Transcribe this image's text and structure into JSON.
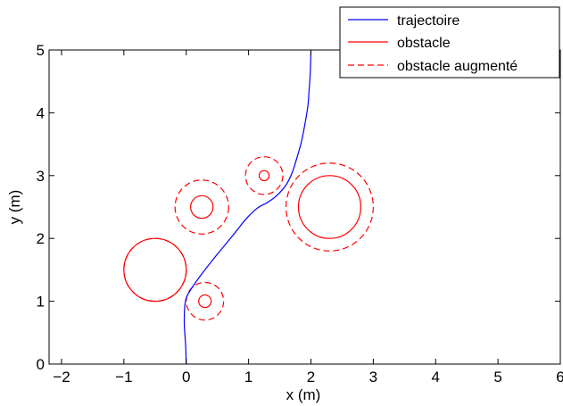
{
  "chart_data": {
    "type": "line",
    "xlabel": "x (m)",
    "ylabel": "y (m)",
    "xlim": [
      -2.2,
      6
    ],
    "ylim": [
      0,
      5
    ],
    "xticks": [
      "−2",
      "−1",
      "0",
      "1",
      "2",
      "3",
      "4",
      "5",
      "6"
    ],
    "yticks": [
      "0",
      "1",
      "2",
      "3",
      "4",
      "5"
    ],
    "grid": false,
    "legend_position": "top-right",
    "legend": [
      {
        "label": "trajectoire",
        "style": "solid",
        "color": "#0000ff"
      },
      {
        "label": "obstacle",
        "style": "solid",
        "color": "#ff0000"
      },
      {
        "label": "obstacle augmenté",
        "style": "dashed",
        "color": "#ff0000"
      }
    ],
    "series": [
      {
        "name": "trajectoire",
        "color": "#0000ff",
        "x": [
          0.0,
          -0.01,
          -0.03,
          -0.03,
          -0.02,
          0.0,
          0.05,
          0.15,
          0.3,
          0.5,
          0.75,
          0.95,
          1.1,
          1.2,
          1.3,
          1.45,
          1.6,
          1.7,
          1.78,
          1.85,
          1.9,
          1.95,
          1.97,
          1.99,
          2.0
        ],
        "y": [
          0.0,
          0.3,
          0.6,
          0.8,
          0.95,
          1.05,
          1.15,
          1.3,
          1.5,
          1.75,
          2.05,
          2.3,
          2.45,
          2.52,
          2.57,
          2.68,
          2.85,
          3.05,
          3.3,
          3.55,
          3.8,
          4.1,
          4.35,
          4.65,
          5.0
        ]
      }
    ],
    "obstacles": [
      {
        "cx": -0.5,
        "cy": 1.5,
        "r": 0.5,
        "r_augmented": 0.5
      },
      {
        "cx": 0.25,
        "cy": 2.5,
        "r": 0.18,
        "r_augmented": 0.43
      },
      {
        "cx": 0.3,
        "cy": 1.0,
        "r": 0.1,
        "r_augmented": 0.3
      },
      {
        "cx": 1.25,
        "cy": 3.0,
        "r": 0.08,
        "r_augmented": 0.3
      },
      {
        "cx": 2.3,
        "cy": 2.5,
        "r": 0.5,
        "r_augmented": 0.7
      }
    ],
    "colors": {
      "trajectory": "#0000ff",
      "obstacle": "#ff0000"
    }
  }
}
